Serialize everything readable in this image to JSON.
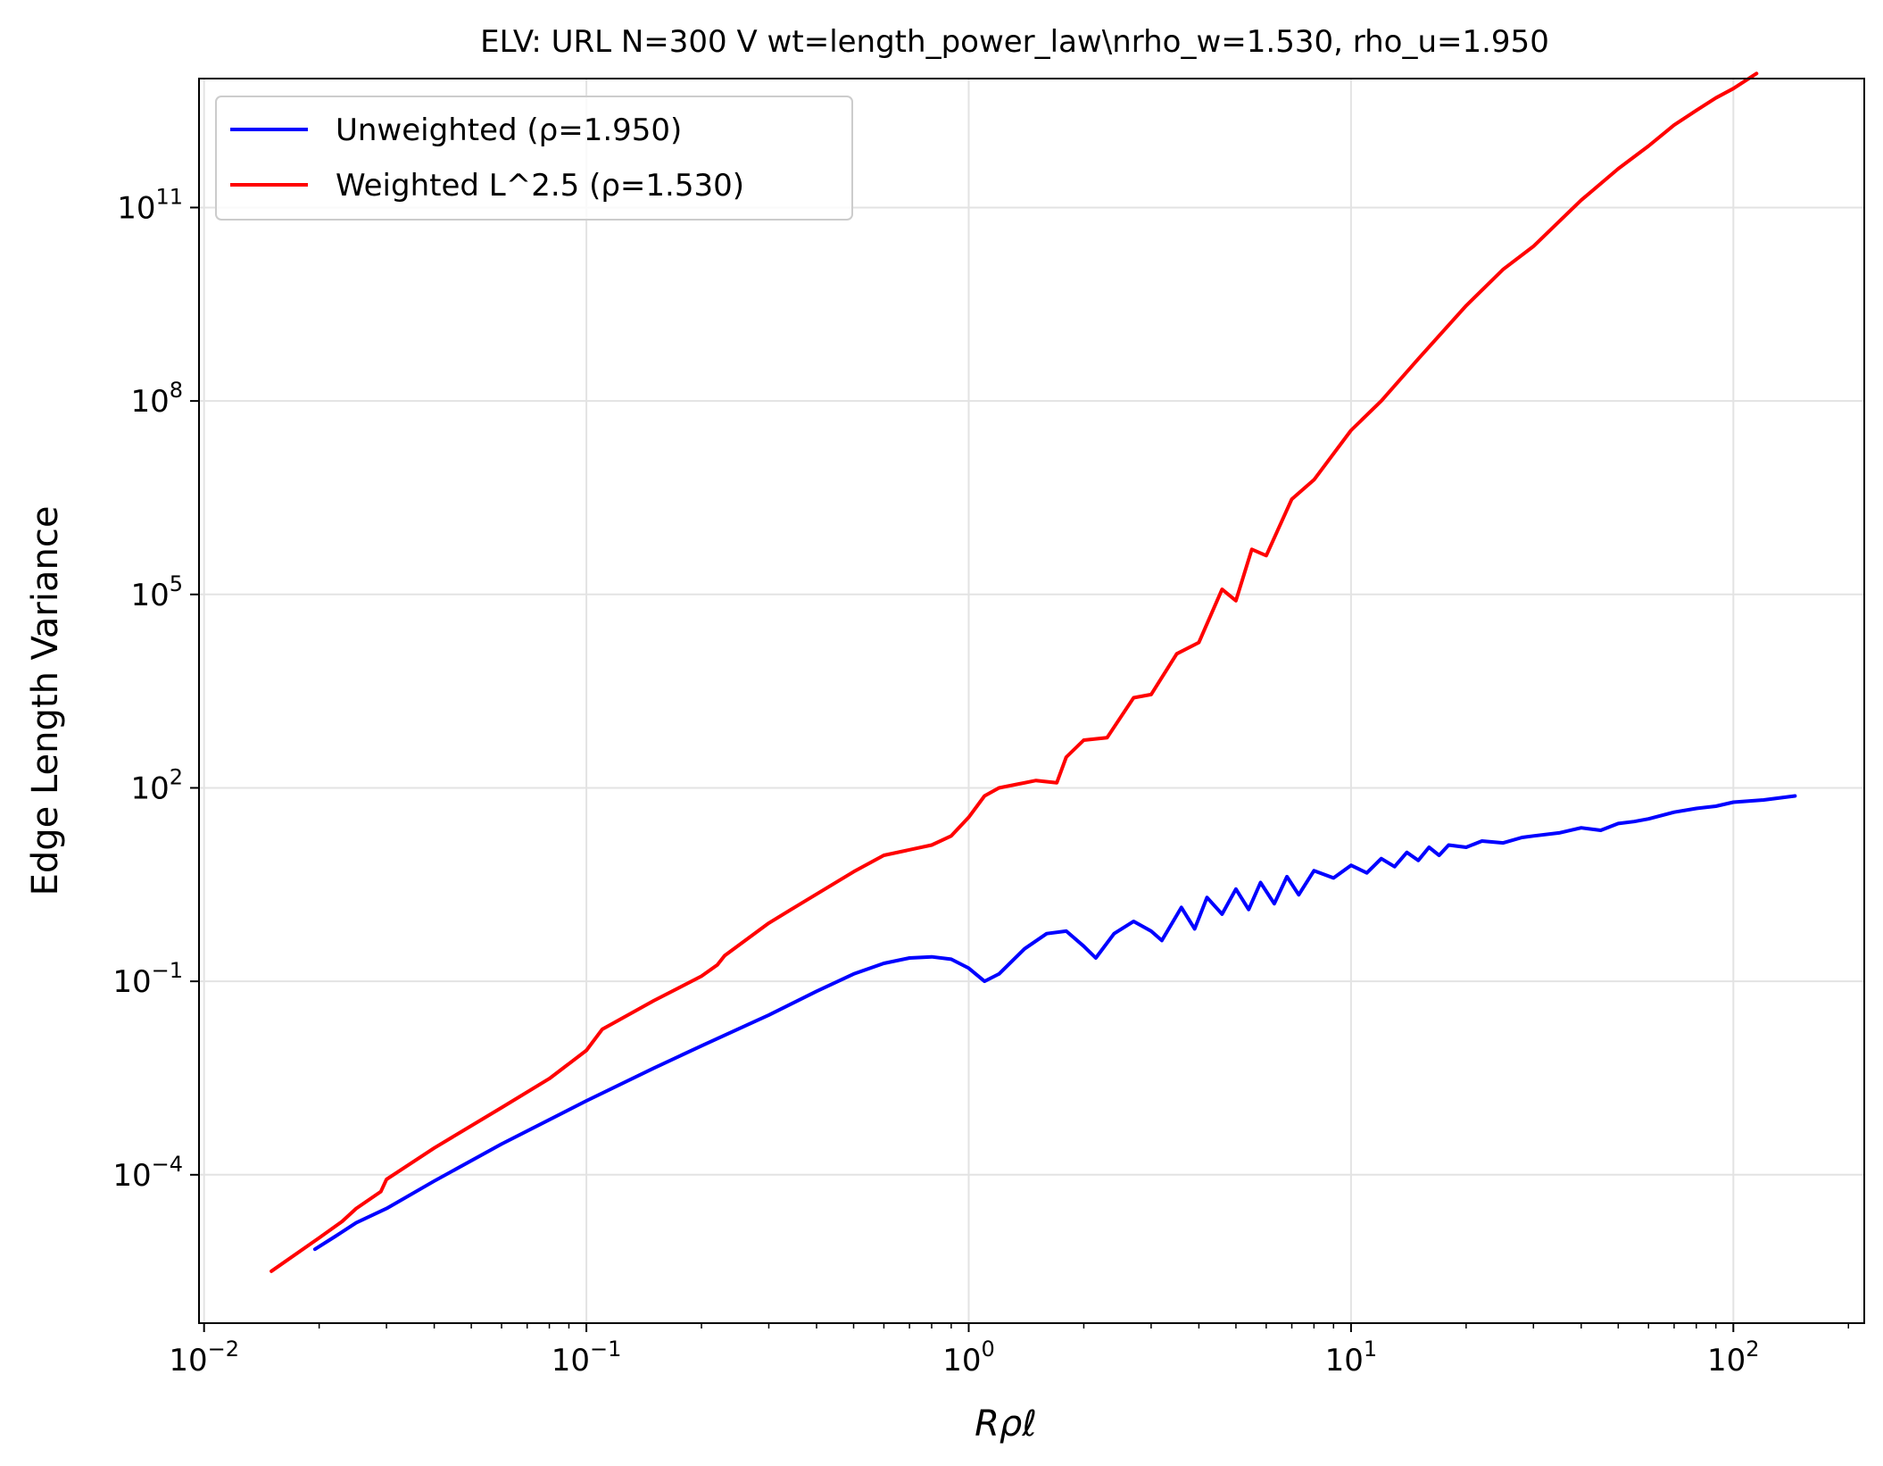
{
  "chart_data": {
    "type": "line",
    "title": "ELV: URL N=300 V wt=length_power_law\\nrho_w=1.530, rho_u=1.950",
    "xlabel": "Rρℓ",
    "ylabel": "Edge Length Variance",
    "xscale": "log",
    "yscale": "log",
    "xlim": [
      0.0097,
      220
    ],
    "ylim": [
      5e-07,
      10000000000000.0
    ],
    "grid": true,
    "legend_position": "top-left",
    "x_ticks": [
      {
        "base": "10",
        "exp": "−2",
        "value": 0.01
      },
      {
        "base": "10",
        "exp": "−1",
        "value": 0.1
      },
      {
        "base": "10",
        "exp": "0",
        "value": 1
      },
      {
        "base": "10",
        "exp": "1",
        "value": 10
      },
      {
        "base": "10",
        "exp": "2",
        "value": 100
      }
    ],
    "y_ticks": [
      {
        "base": "10",
        "exp": "−4",
        "value": 0.0001
      },
      {
        "base": "10",
        "exp": "−1",
        "value": 0.1
      },
      {
        "base": "10",
        "exp": "2",
        "value": 100
      },
      {
        "base": "10",
        "exp": "5",
        "value": 100000
      },
      {
        "base": "10",
        "exp": "8",
        "value": 100000000
      },
      {
        "base": "10",
        "exp": "11",
        "value": 100000000000
      }
    ],
    "series": [
      {
        "name": "Unweighted (ρ=1.950)",
        "color": "#0000ff",
        "x": [
          0.0195,
          0.022,
          0.025,
          0.03,
          0.04,
          0.06,
          0.1,
          0.15,
          0.2,
          0.3,
          0.4,
          0.5,
          0.6,
          0.7,
          0.8,
          0.9,
          1.0,
          1.1,
          1.2,
          1.4,
          1.6,
          1.8,
          2.0,
          2.15,
          2.4,
          2.7,
          3.0,
          3.2,
          3.6,
          3.9,
          4.2,
          4.6,
          5.0,
          5.4,
          5.8,
          6.3,
          6.8,
          7.3,
          8.0,
          9.0,
          10,
          11,
          12,
          13,
          14,
          15,
          16,
          17,
          18,
          20,
          22,
          25,
          28,
          30,
          35,
          40,
          45,
          50,
          55,
          60,
          70,
          80,
          90,
          100,
          120,
          145
        ],
        "y": [
          7e-06,
          1.1e-05,
          1.8e-05,
          3e-05,
          8e-05,
          0.0003,
          0.0014,
          0.0045,
          0.01,
          0.03,
          0.07,
          0.13,
          0.19,
          0.23,
          0.24,
          0.22,
          0.16,
          0.1,
          0.13,
          0.32,
          0.55,
          0.6,
          0.35,
          0.23,
          0.55,
          0.85,
          0.6,
          0.43,
          1.4,
          0.65,
          2.0,
          1.1,
          2.7,
          1.3,
          3.4,
          1.6,
          4.2,
          2.2,
          5.2,
          4.0,
          6.3,
          4.8,
          8.0,
          6.0,
          10.0,
          7.5,
          12.0,
          9.0,
          13.0,
          12.0,
          15.0,
          14.0,
          17.0,
          18.0,
          20.0,
          24.0,
          22.0,
          28.0,
          30.0,
          33.0,
          42.0,
          48.0,
          52.0,
          60.0,
          65.0,
          75.0
        ]
      },
      {
        "name": "Weighted L^2.5 (ρ=1.530)",
        "color": "#ff0000",
        "x": [
          0.015,
          0.02,
          0.023,
          0.025,
          0.029,
          0.03,
          0.04,
          0.06,
          0.08,
          0.1,
          0.11,
          0.15,
          0.2,
          0.22,
          0.23,
          0.3,
          0.35,
          0.5,
          0.6,
          0.8,
          0.9,
          1.0,
          1.1,
          1.2,
          1.5,
          1.7,
          1.8,
          2.0,
          2.3,
          2.7,
          3.0,
          3.5,
          4.0,
          4.6,
          5.0,
          5.5,
          6.0,
          7.0,
          8.0,
          10,
          12,
          15,
          20,
          25,
          30,
          40,
          50,
          60,
          70,
          80,
          90,
          100,
          115
        ],
        "y": [
          3.2e-06,
          1.05e-05,
          1.9e-05,
          3e-05,
          5.5e-05,
          8.5e-05,
          0.00026,
          0.0011,
          0.0031,
          0.0085,
          0.018,
          0.05,
          0.12,
          0.18,
          0.25,
          0.8,
          1.4,
          5.0,
          9.0,
          13.0,
          18.0,
          35.0,
          75.0,
          100.0,
          130.0,
          120.0,
          300.0,
          550.0,
          600.0,
          2500.0,
          2800.0,
          12000.0,
          18000.0,
          120000.0,
          80000.0,
          500000.0,
          400000.0,
          3000000.0,
          6000000.0,
          35000000.0,
          100000000.0,
          450000000.0,
          3000000000.0,
          11000000000.0,
          25000000000.0,
          130000000000.0,
          400000000000.0,
          900000000000.0,
          1900000000000.0,
          3200000000000.0,
          5000000000000.0,
          7000000000000.0,
          12000000000000.0
        ]
      }
    ]
  }
}
